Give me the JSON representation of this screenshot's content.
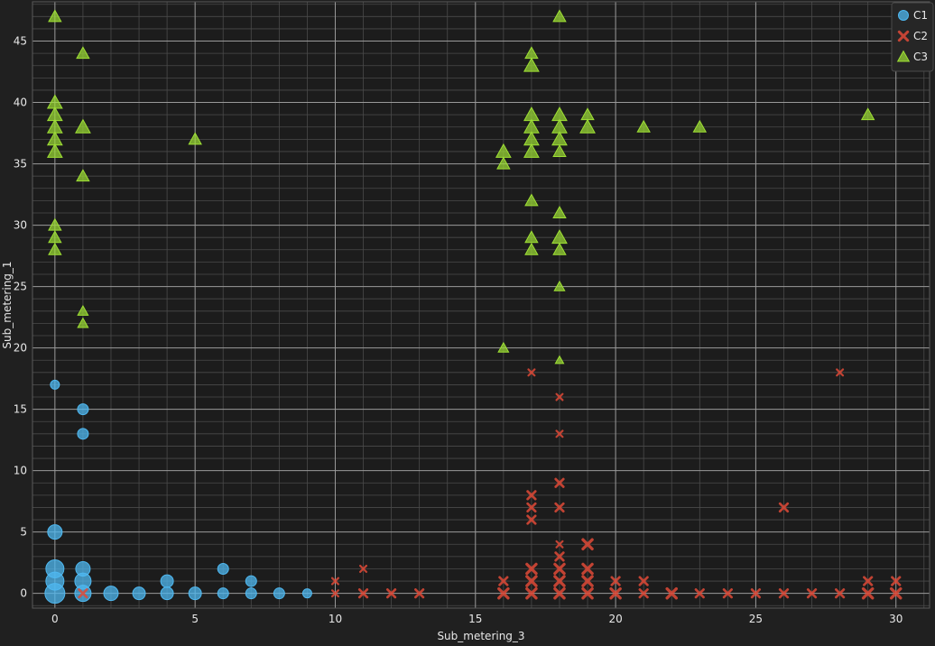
{
  "colors": {
    "background": "#202020",
    "plot_background": "#1c1c1c",
    "grid_major": "#9a9a9a",
    "grid_minor": "#4a4a4a",
    "C1": "#4fb8f0",
    "C2": "#e04a38",
    "C3": "#9ee034"
  },
  "chart_data": {
    "type": "scatter",
    "title": "",
    "xlabel": "Sub_metering_3",
    "ylabel": "Sub_metering_1",
    "xlim": [
      -0.8,
      31.2
    ],
    "ylim": [
      -1.2,
      48.2
    ],
    "xticks": [
      0,
      5,
      10,
      15,
      20,
      25,
      30
    ],
    "yticks": [
      0,
      5,
      10,
      15,
      20,
      25,
      30,
      35,
      40,
      45
    ],
    "grid": true,
    "legend_position": "top-right",
    "series": [
      {
        "name": "C1",
        "marker": "circle",
        "points": [
          [
            0,
            0,
            11
          ],
          [
            0,
            1,
            10
          ],
          [
            0,
            2,
            10
          ],
          [
            0,
            5,
            8
          ],
          [
            0,
            17,
            5
          ],
          [
            1,
            0,
            9
          ],
          [
            1,
            1,
            9
          ],
          [
            1,
            2,
            8
          ],
          [
            1,
            13,
            6
          ],
          [
            1,
            15,
            6
          ],
          [
            2,
            0,
            8
          ],
          [
            3,
            0,
            7
          ],
          [
            4,
            0,
            7
          ],
          [
            4,
            1,
            7
          ],
          [
            5,
            0,
            7
          ],
          [
            6,
            0,
            6
          ],
          [
            6,
            2,
            6
          ],
          [
            7,
            0,
            6
          ],
          [
            7,
            1,
            6
          ],
          [
            8,
            0,
            6
          ],
          [
            9,
            0,
            5
          ]
        ]
      },
      {
        "name": "C2",
        "marker": "x",
        "points": [
          [
            1,
            0,
            5
          ],
          [
            10,
            0,
            4
          ],
          [
            10,
            1,
            4
          ],
          [
            11,
            0,
            5
          ],
          [
            11,
            2,
            4
          ],
          [
            12,
            0,
            5
          ],
          [
            13,
            0,
            5
          ],
          [
            16,
            0,
            6
          ],
          [
            16,
            1,
            5
          ],
          [
            17,
            0,
            6
          ],
          [
            17,
            1,
            6
          ],
          [
            17,
            2,
            6
          ],
          [
            17,
            6,
            5
          ],
          [
            17,
            7,
            5
          ],
          [
            17,
            8,
            5
          ],
          [
            17,
            18,
            4
          ],
          [
            18,
            0,
            6
          ],
          [
            18,
            1,
            6
          ],
          [
            18,
            2,
            6
          ],
          [
            18,
            3,
            5
          ],
          [
            18,
            4,
            4
          ],
          [
            18,
            7,
            5
          ],
          [
            18,
            9,
            5
          ],
          [
            18,
            13,
            4
          ],
          [
            18,
            16,
            4
          ],
          [
            19,
            0,
            6
          ],
          [
            19,
            1,
            6
          ],
          [
            19,
            2,
            6
          ],
          [
            19,
            4,
            6
          ],
          [
            20,
            0,
            6
          ],
          [
            20,
            1,
            5
          ],
          [
            21,
            0,
            5
          ],
          [
            21,
            1,
            5
          ],
          [
            22,
            0,
            6
          ],
          [
            23,
            0,
            5
          ],
          [
            24,
            0,
            5
          ],
          [
            25,
            0,
            5
          ],
          [
            26,
            0,
            5
          ],
          [
            26,
            7,
            5
          ],
          [
            27,
            0,
            5
          ],
          [
            28,
            0,
            5
          ],
          [
            28,
            18,
            4
          ],
          [
            29,
            0,
            6
          ],
          [
            29,
            1,
            5
          ],
          [
            30,
            0,
            6
          ],
          [
            30,
            1,
            5
          ]
        ]
      },
      {
        "name": "C3",
        "marker": "triangle",
        "points": [
          [
            0,
            28,
            6
          ],
          [
            0,
            29,
            6
          ],
          [
            0,
            30,
            6
          ],
          [
            0,
            36,
            7
          ],
          [
            0,
            37,
            7
          ],
          [
            0,
            38,
            7
          ],
          [
            0,
            39,
            7
          ],
          [
            0,
            40,
            7
          ],
          [
            0,
            47,
            6
          ],
          [
            1,
            22,
            5
          ],
          [
            1,
            23,
            5
          ],
          [
            1,
            34,
            6
          ],
          [
            1,
            38,
            7
          ],
          [
            1,
            44,
            6
          ],
          [
            5,
            37,
            6
          ],
          [
            16,
            20,
            5
          ],
          [
            16,
            35,
            6
          ],
          [
            16,
            36,
            7
          ],
          [
            17,
            28,
            6
          ],
          [
            17,
            29,
            6
          ],
          [
            17,
            32,
            6
          ],
          [
            17,
            36,
            7
          ],
          [
            17,
            37,
            7
          ],
          [
            17,
            38,
            7
          ],
          [
            17,
            39,
            7
          ],
          [
            17,
            43,
            7
          ],
          [
            17,
            44,
            6
          ],
          [
            18,
            19,
            4
          ],
          [
            18,
            25,
            5
          ],
          [
            18,
            28,
            6
          ],
          [
            18,
            29,
            7
          ],
          [
            18,
            31,
            6
          ],
          [
            18,
            36,
            6
          ],
          [
            18,
            37,
            7
          ],
          [
            18,
            38,
            7
          ],
          [
            18,
            39,
            7
          ],
          [
            18,
            47,
            6
          ],
          [
            19,
            38,
            7
          ],
          [
            19,
            39,
            6
          ],
          [
            21,
            38,
            6
          ],
          [
            23,
            38,
            6
          ],
          [
            29,
            39,
            6
          ]
        ]
      }
    ]
  }
}
